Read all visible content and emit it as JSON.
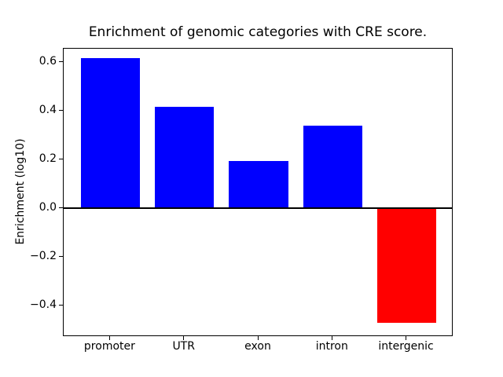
{
  "chart_data": {
    "type": "bar",
    "title": "Enrichment of genomic categories with CRE score.",
    "xlabel": "",
    "ylabel": "Enrichment (log10)",
    "categories": [
      "promoter",
      "UTR",
      "exon",
      "intron",
      "intergenic"
    ],
    "values": [
      0.615,
      0.415,
      0.195,
      0.34,
      -0.47
    ],
    "bar_colors": [
      "#0000ff",
      "#0000ff",
      "#0000ff",
      "#0000ff",
      "#ff0000"
    ],
    "positive_color": "#0000ff",
    "negative_color": "#ff0000",
    "bar_width": 0.8,
    "xlim": [
      -0.63,
      4.63
    ],
    "ylim": [
      -0.528,
      0.655
    ],
    "yticks": {
      "values": [
        -0.4,
        -0.2,
        0.0,
        0.2,
        0.4,
        0.6
      ],
      "labels": [
        "−0.4",
        "−0.2",
        "0.0",
        "0.2",
        "0.4",
        "0.6"
      ]
    },
    "grid": false,
    "zero_line": true,
    "legend": null,
    "axis_color": "#000000",
    "background_color": "#ffffff"
  }
}
